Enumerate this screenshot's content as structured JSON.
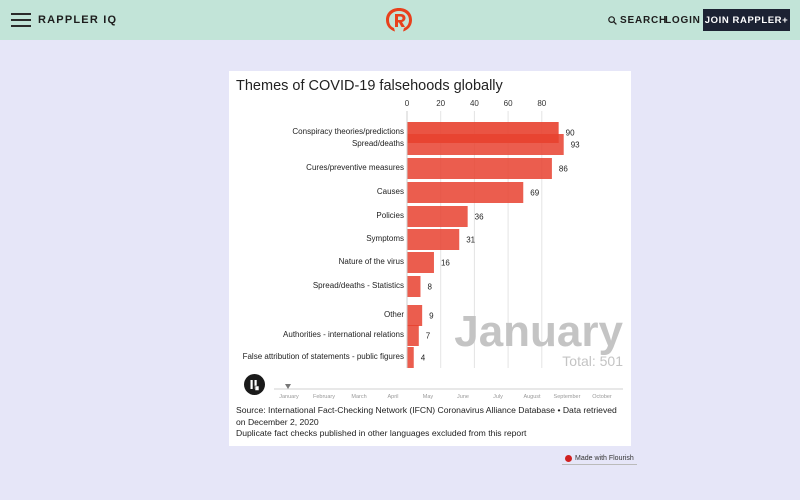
{
  "header": {
    "brand": "RAPPLER IQ",
    "search_label": "SEARCH",
    "login_label": "LOGIN",
    "join_label": "JOIN RAPPLER+",
    "background": "#c2e4d8",
    "logo_color": "#e8401c"
  },
  "card": {
    "title": "Themes of COVID-19 falsehoods globally",
    "source_line1": "Source: International Fact-Checking Network (IFCN) Coronavirus Alliance Database • Data retrieved on December 2, 2020",
    "source_line2": "Duplicate fact checks published in other languages excluded from this report",
    "flourish_label": "Made with Flourish"
  },
  "chart_data": {
    "type": "bar",
    "orientation": "horizontal",
    "animated_race": true,
    "categories": [
      "Conspiracy theories/predictions",
      "Spread/deaths",
      "Cures/preventive measures",
      "Causes",
      "Policies",
      "Symptoms",
      "Nature of the virus",
      "Spread/deaths - Statistics",
      "Other",
      "Authorities - international relations",
      "False attribution of statements - public figures"
    ],
    "values": [
      90,
      93,
      86,
      69,
      36,
      31,
      16,
      8,
      9,
      7,
      4
    ],
    "xlim": [
      0,
      100
    ],
    "x_ticks": [
      0,
      20,
      40,
      60,
      80
    ],
    "bar_color": "#e8412f",
    "period_label": "January",
    "total_label": "Total: 501",
    "timeline_months": [
      "January",
      "February",
      "March",
      "April",
      "May",
      "June",
      "July",
      "August",
      "September",
      "October"
    ],
    "timeline_position": "January"
  }
}
